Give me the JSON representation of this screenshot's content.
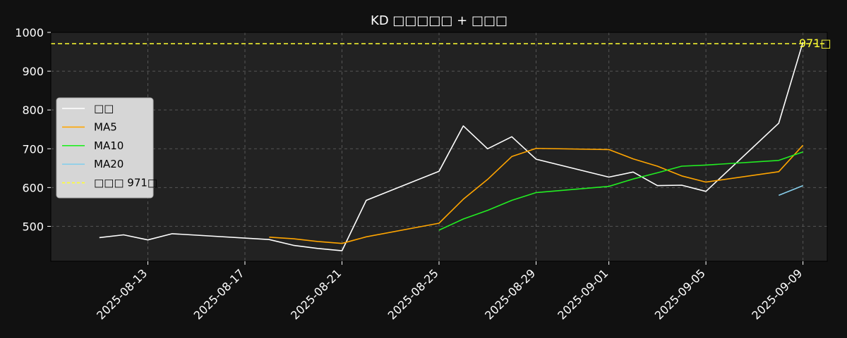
{
  "chart_data": {
    "type": "line",
    "title": "KD □□□□□ + □□□",
    "xlabel": "",
    "ylabel": "",
    "ylim": [
      410,
      1000
    ],
    "xlim": [
      "2025-08-09",
      "2025-09-10"
    ],
    "y_ticks": [
      500,
      600,
      700,
      800,
      900,
      1000
    ],
    "x_ticks": [
      "2025-08-13",
      "2025-08-17",
      "2025-08-21",
      "2025-08-25",
      "2025-08-29",
      "2025-09-01",
      "2025-09-05",
      "2025-09-09"
    ],
    "grid": true,
    "legend_position": "center-left",
    "colors": {
      "background": "#111111",
      "plot_background": "#222222",
      "grid": "#555555",
      "text": "#ffffff",
      "legend_background": "#d6d6d6"
    },
    "series": [
      {
        "name": "□□",
        "color": "#ffffff",
        "points": [
          [
            "2025-08-11",
            471
          ],
          [
            "2025-08-12",
            478
          ],
          [
            "2025-08-13",
            465
          ],
          [
            "2025-08-14",
            481
          ],
          [
            "2025-08-18",
            466
          ],
          [
            "2025-08-19",
            451
          ],
          [
            "2025-08-20",
            443
          ],
          [
            "2025-08-21",
            437
          ],
          [
            "2025-08-22",
            567
          ],
          [
            "2025-08-25",
            642
          ],
          [
            "2025-08-26",
            759
          ],
          [
            "2025-08-27",
            700
          ],
          [
            "2025-08-28",
            731
          ],
          [
            "2025-08-29",
            673
          ],
          [
            "2025-09-01",
            627
          ],
          [
            "2025-09-02",
            640
          ],
          [
            "2025-09-03",
            605
          ],
          [
            "2025-09-04",
            606
          ],
          [
            "2025-09-05",
            590
          ],
          [
            "2025-09-08",
            766
          ],
          [
            "2025-09-09",
            975
          ]
        ]
      },
      {
        "name": "MA5",
        "color": "#ffa500",
        "points": [
          [
            "2025-08-18",
            472
          ],
          [
            "2025-08-19",
            468
          ],
          [
            "2025-08-20",
            461
          ],
          [
            "2025-08-21",
            456
          ],
          [
            "2025-08-22",
            473
          ],
          [
            "2025-08-25",
            508
          ],
          [
            "2025-08-26",
            570
          ],
          [
            "2025-08-27",
            621
          ],
          [
            "2025-08-28",
            680
          ],
          [
            "2025-08-29",
            701
          ],
          [
            "2025-09-01",
            698
          ],
          [
            "2025-09-02",
            674
          ],
          [
            "2025-09-03",
            655
          ],
          [
            "2025-09-04",
            630
          ],
          [
            "2025-09-05",
            614
          ],
          [
            "2025-09-08",
            641
          ],
          [
            "2025-09-09",
            709
          ]
        ]
      },
      {
        "name": "MA10",
        "color": "#22ee22",
        "points": [
          [
            "2025-08-25",
            490
          ],
          [
            "2025-08-26",
            519
          ],
          [
            "2025-08-27",
            541
          ],
          [
            "2025-08-28",
            567
          ],
          [
            "2025-08-29",
            587
          ],
          [
            "2025-09-01",
            603
          ],
          [
            "2025-09-02",
            622
          ],
          [
            "2025-09-03",
            638
          ],
          [
            "2025-09-04",
            655
          ],
          [
            "2025-09-05",
            658
          ],
          [
            "2025-09-08",
            670
          ],
          [
            "2025-09-09",
            692
          ]
        ]
      },
      {
        "name": "MA20",
        "color": "#87ceeb",
        "points": [
          [
            "2025-09-08",
            580
          ],
          [
            "2025-09-09",
            605
          ]
        ]
      }
    ],
    "reference_line": {
      "name": "□□□ 971□",
      "value": 971,
      "color": "#ffff33",
      "style": "dashed",
      "annotation": "971□"
    }
  }
}
